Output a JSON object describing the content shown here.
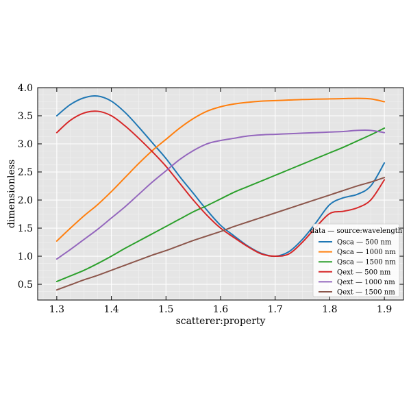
{
  "chart_data": {
    "type": "line",
    "xlabel": "scatterer:property",
    "ylabel": "dimensionless",
    "xlim": [
      1.265,
      1.935
    ],
    "ylim": [
      0.22,
      4.0
    ],
    "xticks": [
      1.3,
      1.4,
      1.5,
      1.6,
      1.7,
      1.8,
      1.9
    ],
    "xtick_labels": [
      "1.3",
      "1.4",
      "1.5",
      "1.6",
      "1.7",
      "1.8",
      "1.9"
    ],
    "yticks": [
      0.5,
      1.0,
      1.5,
      2.0,
      2.5,
      3.0,
      3.5,
      4.0
    ],
    "ytick_labels": [
      "0.5",
      "1.0",
      "1.5",
      "2.0",
      "2.5",
      "3.0",
      "3.5",
      "4.0"
    ],
    "grid": true,
    "legend_title": "data — source:wavelength",
    "legend_location": "lower-right",
    "x": [
      1.3,
      1.325,
      1.35,
      1.375,
      1.4,
      1.425,
      1.45,
      1.475,
      1.5,
      1.525,
      1.55,
      1.575,
      1.6,
      1.625,
      1.65,
      1.675,
      1.7,
      1.725,
      1.75,
      1.775,
      1.8,
      1.825,
      1.85,
      1.875,
      1.9
    ],
    "series": [
      {
        "name": "Qsca — 500 nm",
        "color": "#1f77b4",
        "values": [
          3.5,
          3.7,
          3.82,
          3.85,
          3.76,
          3.56,
          3.3,
          3.02,
          2.74,
          2.42,
          2.12,
          1.82,
          1.55,
          1.36,
          1.18,
          1.05,
          1.0,
          1.08,
          1.3,
          1.6,
          1.92,
          2.04,
          2.1,
          2.25,
          2.66
        ]
      },
      {
        "name": "Qsca — 1000 nm",
        "color": "#ff7f0e",
        "values": [
          1.27,
          1.5,
          1.72,
          1.92,
          2.15,
          2.4,
          2.65,
          2.88,
          3.08,
          3.28,
          3.45,
          3.58,
          3.66,
          3.71,
          3.74,
          3.76,
          3.77,
          3.78,
          3.79,
          3.795,
          3.8,
          3.805,
          3.81,
          3.8,
          3.75
        ]
      },
      {
        "name": "Qsca — 1500 nm",
        "color": "#2ca02c",
        "values": [
          0.55,
          0.65,
          0.75,
          0.87,
          1.0,
          1.14,
          1.27,
          1.4,
          1.53,
          1.66,
          1.79,
          1.9,
          2.02,
          2.14,
          2.24,
          2.34,
          2.44,
          2.54,
          2.64,
          2.74,
          2.84,
          2.94,
          3.05,
          3.16,
          3.28
        ]
      },
      {
        "name": "Qext — 500 nm",
        "color": "#d62728",
        "values": [
          3.2,
          3.42,
          3.55,
          3.58,
          3.5,
          3.32,
          3.1,
          2.86,
          2.6,
          2.3,
          2.0,
          1.73,
          1.5,
          1.33,
          1.17,
          1.04,
          1.0,
          1.04,
          1.25,
          1.52,
          1.76,
          1.8,
          1.86,
          2.0,
          2.36
        ]
      },
      {
        "name": "Qext — 1000 nm",
        "color": "#9467bd",
        "values": [
          0.95,
          1.12,
          1.3,
          1.48,
          1.68,
          1.88,
          2.1,
          2.32,
          2.52,
          2.72,
          2.88,
          3.0,
          3.06,
          3.1,
          3.14,
          3.16,
          3.17,
          3.18,
          3.19,
          3.2,
          3.21,
          3.22,
          3.24,
          3.24,
          3.2
        ]
      },
      {
        "name": "Qext — 1500 nm",
        "color": "#8c564b",
        "values": [
          0.4,
          0.49,
          0.58,
          0.66,
          0.75,
          0.84,
          0.93,
          1.02,
          1.1,
          1.19,
          1.28,
          1.36,
          1.44,
          1.53,
          1.61,
          1.69,
          1.77,
          1.85,
          1.93,
          2.01,
          2.09,
          2.17,
          2.25,
          2.32,
          2.4
        ]
      }
    ]
  }
}
